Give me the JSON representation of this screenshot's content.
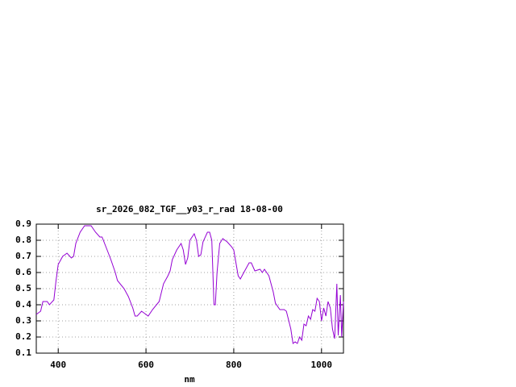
{
  "chart_data": {
    "type": "line",
    "title": "sr_2026_082_TGF__y03_r_rad 18-08-00",
    "x_label": "nm",
    "xlim": [
      350,
      1050
    ],
    "xticks": [
      400,
      600,
      800,
      1000
    ],
    "ylim": [
      0.1,
      0.9
    ],
    "yticks": [
      0.1,
      0.2,
      0.3,
      0.4,
      0.5,
      0.6,
      0.7,
      0.8,
      0.9
    ],
    "grid": true,
    "x": [
      350,
      360,
      365,
      375,
      380,
      390,
      395,
      400,
      410,
      420,
      430,
      435,
      440,
      450,
      460,
      475,
      485,
      495,
      500,
      510,
      520,
      530,
      535,
      550,
      560,
      570,
      575,
      580,
      590,
      600,
      605,
      615,
      630,
      640,
      650,
      655,
      660,
      670,
      680,
      685,
      690,
      695,
      700,
      710,
      715,
      720,
      725,
      730,
      740,
      745,
      750,
      755,
      758,
      762,
      768,
      775,
      785,
      795,
      800,
      810,
      815,
      825,
      835,
      840,
      848,
      860,
      865,
      870,
      880,
      890,
      895,
      905,
      915,
      920,
      930,
      935,
      940,
      945,
      950,
      955,
      960,
      965,
      970,
      975,
      980,
      985,
      990,
      995,
      1000,
      1005,
      1010,
      1015,
      1020,
      1025,
      1030,
      1035,
      1038,
      1043,
      1046,
      1050
    ],
    "series": [
      {
        "color": "#9400d3",
        "values": [
          0.34,
          0.36,
          0.42,
          0.42,
          0.4,
          0.43,
          0.55,
          0.65,
          0.7,
          0.72,
          0.69,
          0.7,
          0.78,
          0.85,
          0.89,
          0.89,
          0.85,
          0.82,
          0.82,
          0.75,
          0.68,
          0.6,
          0.55,
          0.5,
          0.45,
          0.38,
          0.33,
          0.33,
          0.36,
          0.34,
          0.33,
          0.37,
          0.42,
          0.53,
          0.58,
          0.61,
          0.68,
          0.74,
          0.78,
          0.74,
          0.65,
          0.69,
          0.8,
          0.84,
          0.8,
          0.7,
          0.71,
          0.79,
          0.85,
          0.85,
          0.8,
          0.4,
          0.4,
          0.6,
          0.78,
          0.81,
          0.79,
          0.76,
          0.74,
          0.58,
          0.56,
          0.61,
          0.66,
          0.66,
          0.61,
          0.62,
          0.6,
          0.62,
          0.58,
          0.48,
          0.41,
          0.37,
          0.37,
          0.36,
          0.25,
          0.16,
          0.17,
          0.16,
          0.2,
          0.18,
          0.28,
          0.27,
          0.33,
          0.31,
          0.37,
          0.36,
          0.44,
          0.42,
          0.3,
          0.38,
          0.33,
          0.42,
          0.38,
          0.25,
          0.19,
          0.53,
          0.21,
          0.46,
          0.2,
          0.42
        ]
      }
    ]
  }
}
